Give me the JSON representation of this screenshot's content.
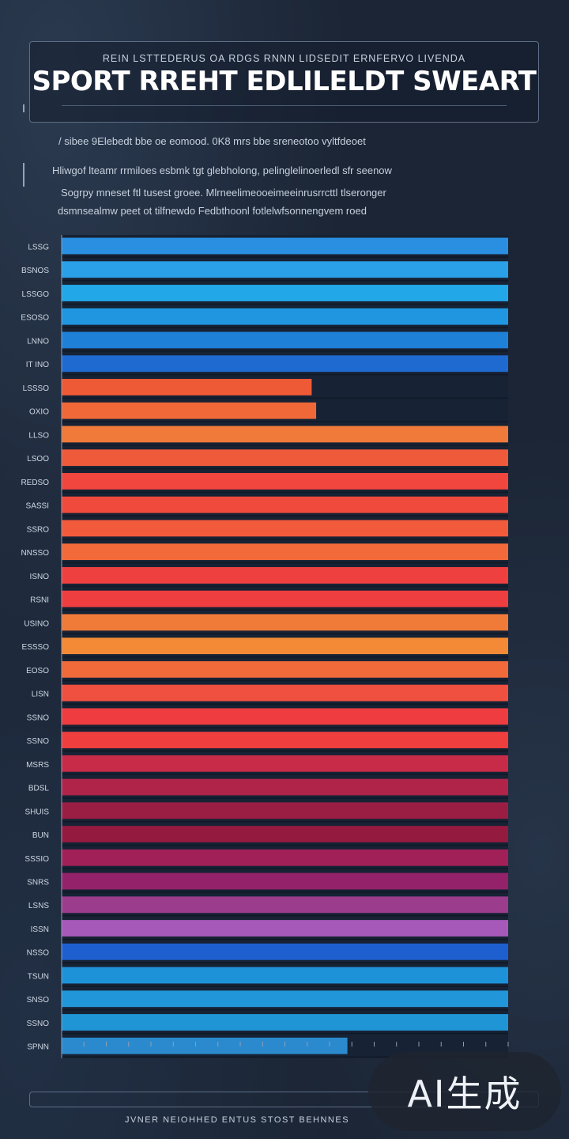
{
  "header": {
    "subtitle": "REIN LSTTEDERUS OA RDGS RNNN LIDSEDIT ERNFERVO LIVENDA",
    "title": "SPORT RREHT EDLILELDT SWEART"
  },
  "description": [
    "/ sibee 9Elebedt bbe oe eomood. 0K8 mrs bbe sreneotoo vyltfdeoet",
    "Hliwgof lteamr rrmiloes esbmk tgt glebholong, pelinglelinoerledl sfr seenow",
    "Sogrpy mneset ftl tusest groee. Mlrneelimeooeimeeinrusrrcttl tlseronger",
    "dsmnsealmw peet ot tilfnewdo Fedbthoonl fotlelwfsonnengvem roed"
  ],
  "footer": {
    "text": "JVNER NEIOHHED ENTUS STOST BEHNNES"
  },
  "watermark": {
    "text": "AI生成"
  },
  "chart_data": {
    "type": "bar",
    "orientation": "horizontal",
    "title": "SPORT RREHT EDLILELDT SWEART",
    "categories": [
      "LSSG",
      "BSNOS",
      "LSSGO",
      "ESOSO",
      "LNNO",
      "IT INO",
      "LSSSO",
      "OXIO",
      "LLSO",
      "LSOO",
      "REDSO",
      "SASSI",
      "SSRO",
      "NNSSO",
      "ISNO",
      "RSNI",
      "USINO",
      "ESSSO",
      "EOSO",
      "LISN",
      "SSNO",
      "SSNO",
      "MSRS",
      "BDSL",
      "SHUIS",
      "BUN",
      "SSSIO",
      "SNRS",
      "LSNS",
      "ISSN",
      "NSSO",
      "TSUN",
      "SNSO",
      "SSNO",
      "SPNN"
    ],
    "values": [
      100,
      100,
      100,
      100,
      100,
      100,
      56,
      57,
      100,
      100,
      100,
      100,
      100,
      100,
      100,
      100,
      100,
      100,
      100,
      100,
      100,
      100,
      100,
      100,
      100,
      100,
      100,
      100,
      100,
      100,
      100,
      100,
      100,
      100,
      64
    ],
    "bar_colors": [
      "#2a8fe0",
      "#2aa0e8",
      "#22a8e8",
      "#2196e0",
      "#1f80d8",
      "#1e6ad0",
      "#ef5a36",
      "#f06838",
      "#f07a3a",
      "#ee5a3a",
      "#f0463e",
      "#ef4a3c",
      "#f25a3c",
      "#f26a3a",
      "#ef4040",
      "#ee3e3f",
      "#f07a38",
      "#f58a36",
      "#f06a3a",
      "#ef5040",
      "#ee3c40",
      "#ee3e3e",
      "#c82b48",
      "#b0244a",
      "#9a1e44",
      "#951a40",
      "#a22058",
      "#94226a",
      "#9c3c8c",
      "#a659b8",
      "#1e5fd0",
      "#1e92d8",
      "#2196d8",
      "#2095d5",
      "#2b8acd"
    ],
    "xlim": [
      0,
      100
    ],
    "grid": true,
    "legend": "none"
  }
}
